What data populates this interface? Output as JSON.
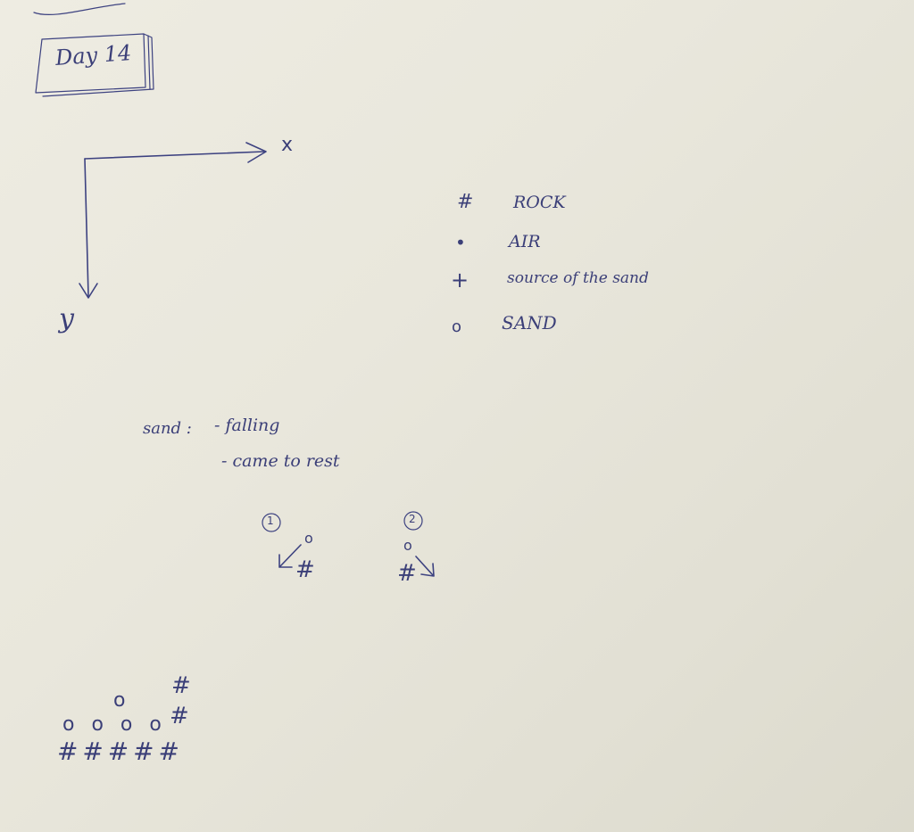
{
  "title": "Day 14",
  "axes": {
    "x_label": "x",
    "y_label": "y"
  },
  "legend": [
    {
      "symbol": "#",
      "label": "ROCK"
    },
    {
      "symbol": "•",
      "label": "AIR"
    },
    {
      "symbol": "+",
      "label": "source of the sand"
    },
    {
      "symbol": "o",
      "label": "SAND"
    }
  ],
  "notes": {
    "prefix": "sand :",
    "items": [
      "- falling",
      "- came to rest"
    ]
  },
  "cases": [
    {
      "number": "1",
      "sand": "o",
      "rock": "#"
    },
    {
      "number": "2",
      "sand": "o",
      "rock": "#"
    }
  ],
  "pile": {
    "row1_sand": "o",
    "row2_sand": "o o o o",
    "row3_rock": "# # # # #",
    "wall": [
      "#",
      "#"
    ]
  }
}
